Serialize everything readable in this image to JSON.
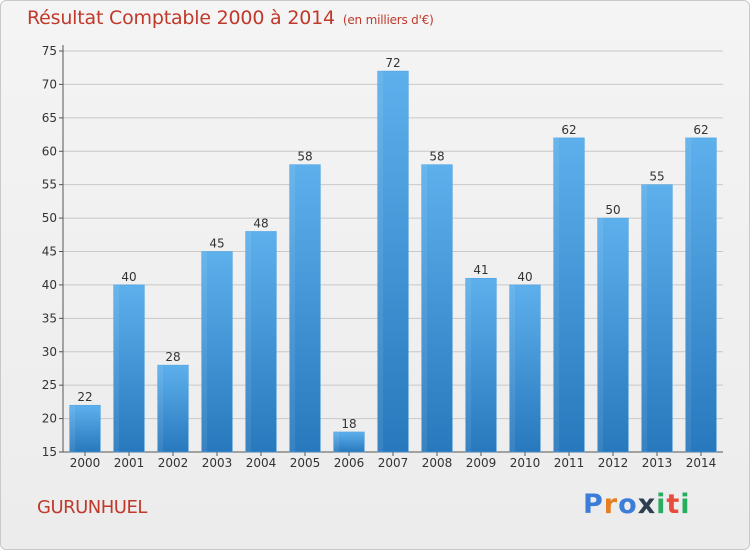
{
  "title": "Résultat Comptable 2000 à 2014",
  "subtitle": "(en milliers d'€)",
  "commune": "GURUNHUEL",
  "logo": {
    "letters": [
      "P",
      "r",
      "o",
      "x",
      "i",
      "t",
      "i"
    ],
    "colors": [
      "#3b7dd8",
      "#e67e22",
      "#3b7dd8",
      "#2c3e50",
      "#27ae60",
      "#e74c3c",
      "#27ae60"
    ]
  },
  "colors": {
    "bar": "#3f95d6",
    "bar_light": "#5aaeea",
    "bar_dark": "#2a7fc0",
    "title": "#c0392b",
    "grid": "#c8c8c8"
  },
  "chart_data": {
    "type": "bar",
    "title": "Résultat Comptable 2000 à 2014",
    "subtitle": "(en milliers d'€)",
    "xlabel": "",
    "ylabel": "",
    "categories": [
      "2000",
      "2001",
      "2002",
      "2003",
      "2004",
      "2005",
      "2006",
      "2007",
      "2008",
      "2009",
      "2010",
      "2011",
      "2012",
      "2013",
      "2014"
    ],
    "values": [
      22,
      40,
      28,
      45,
      48,
      58,
      18,
      72,
      58,
      41,
      40,
      62,
      50,
      55,
      62
    ],
    "ylim": [
      15,
      75
    ],
    "yticks": [
      15,
      20,
      25,
      30,
      35,
      40,
      45,
      50,
      55,
      60,
      65,
      70,
      75
    ],
    "grid": true,
    "legend": "none"
  }
}
